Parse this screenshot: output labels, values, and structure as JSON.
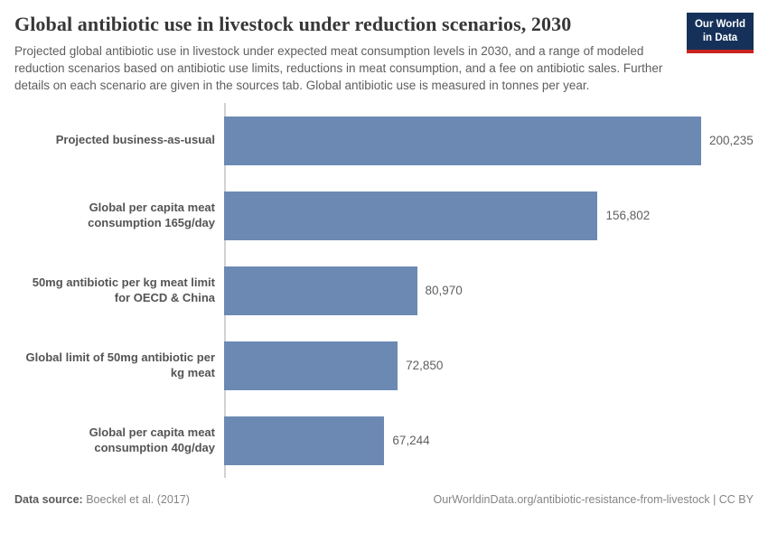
{
  "header": {
    "title": "Global antibiotic use in livestock under reduction scenarios, 2030",
    "subtitle": "Projected global antibiotic use in livestock under expected meat consumption levels in 2030, and a range of modeled reduction scenarios based on antibiotic use limits, reductions in meat consumption, and a fee on antibiotic sales. Further details on each scenario are given in the sources tab. Global antibiotic use is measured in tonnes per year.",
    "logo": {
      "line1": "Our World",
      "line2": "in Data"
    }
  },
  "chart_data": {
    "type": "bar",
    "orientation": "horizontal",
    "title": "Global antibiotic use in livestock under reduction scenarios, 2030",
    "unit": "tonnes per year",
    "categories": [
      "Projected business-as-usual",
      "Global per capita meat consumption 165g/day",
      "50mg antibiotic per kg meat limit for OECD & China",
      "Global limit of 50mg antibiotic per kg meat",
      "Global per capita meat consumption 40g/day"
    ],
    "values": [
      200235,
      156802,
      80970,
      72850,
      67244
    ],
    "value_labels": [
      "200,235",
      "156,802",
      "80,970",
      "72,850",
      "67,244"
    ],
    "xlim": [
      0,
      200235
    ],
    "grid": false,
    "legend": "none",
    "bar_color": "#6c89b3"
  },
  "footer": {
    "datasource_label": "Data source:",
    "datasource_value": "Boeckel et al. (2017)",
    "attribution": "OurWorldinData.org/antibiotic-resistance-from-livestock | CC BY"
  },
  "colors": {
    "logo_navy": "#15315a",
    "logo_red": "#c9231e",
    "bar": "#6c89b3"
  }
}
